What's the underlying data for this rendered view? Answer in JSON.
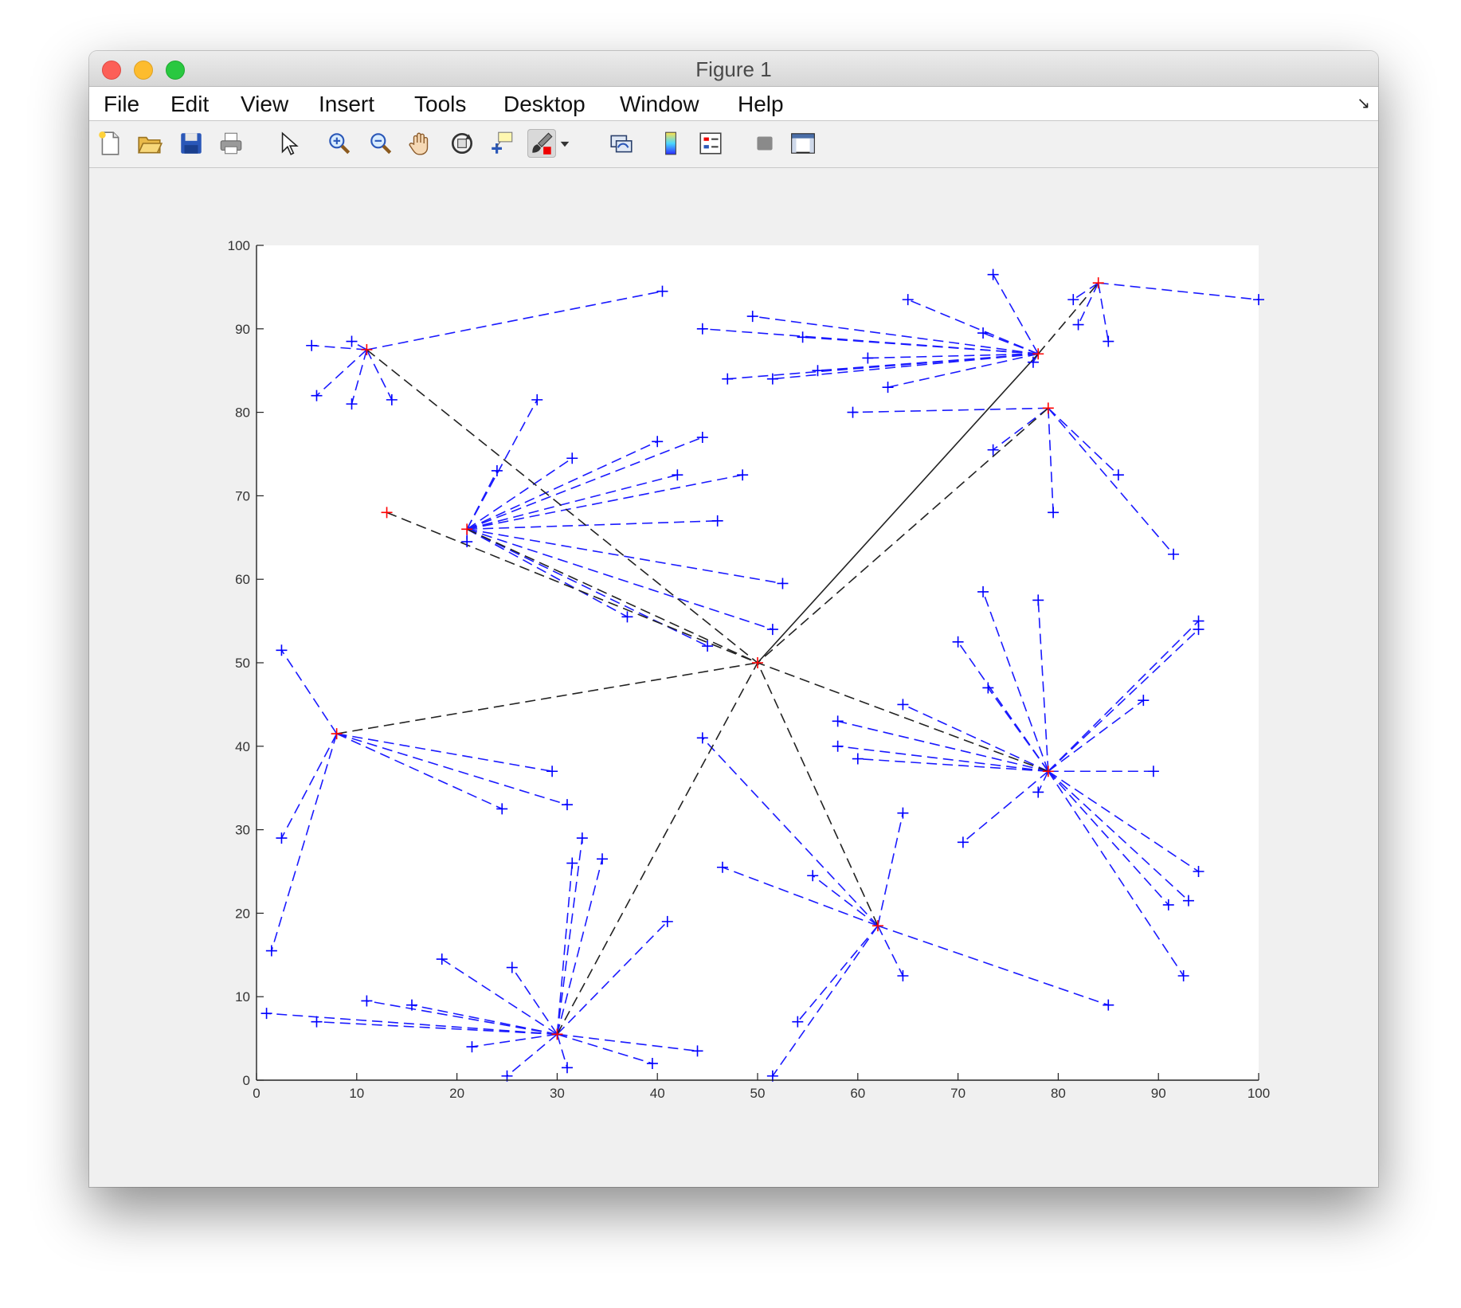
{
  "window": {
    "title": "Figure 1"
  },
  "menu": [
    "File",
    "Edit",
    "View",
    "Insert",
    "Tools",
    "Desktop",
    "Window",
    "Help"
  ],
  "toolbar": {
    "icons": [
      "new-figure-icon",
      "open-file-icon",
      "save-icon",
      "print-icon",
      "select-arrow-icon",
      "zoom-in-icon",
      "zoom-out-icon",
      "pan-hand-icon",
      "rotate-3d-icon",
      "data-cursor-icon",
      "brush-icon",
      "brush-dropdown-icon",
      "link-plot-icon",
      "colorbar-icon",
      "legend-icon",
      "hide-plot-tools-icon",
      "show-plot-tools-icon"
    ]
  },
  "colors": {
    "member_line": "#1a1aff",
    "backbone_line": "#222222",
    "member_marker": "#0000ff",
    "head_marker": "#ff0000"
  },
  "chart_data": {
    "type": "scatter",
    "title": "",
    "xlabel": "",
    "ylabel": "",
    "xlim": [
      0,
      100
    ],
    "ylim": [
      0,
      100
    ],
    "xticks": [
      "0",
      "10",
      "20",
      "30",
      "40",
      "50",
      "60",
      "70",
      "80",
      "90",
      "100"
    ],
    "yticks": [
      "0",
      "10",
      "20",
      "30",
      "40",
      "50",
      "60",
      "70",
      "80",
      "90",
      "100"
    ],
    "grid": false,
    "base_station": [
      50,
      50
    ],
    "clusters": [
      {
        "head": [
          11,
          87.5
        ],
        "members": [
          [
            5.5,
            88
          ],
          [
            9.5,
            88.5
          ],
          [
            6,
            82
          ],
          [
            9.5,
            81
          ],
          [
            13.5,
            81.5
          ],
          [
            40.5,
            94.5
          ]
        ]
      },
      {
        "head": [
          21,
          66
        ],
        "members": [
          [
            28,
            81.5
          ],
          [
            24,
            73
          ],
          [
            31.5,
            74.5
          ],
          [
            40,
            76.5
          ],
          [
            44.5,
            77
          ],
          [
            42,
            72.5
          ],
          [
            48.5,
            72.5
          ],
          [
            46,
            67
          ],
          [
            21,
            64.5
          ],
          [
            52.5,
            59.5
          ],
          [
            51.5,
            54
          ],
          [
            37,
            55.5
          ],
          [
            45,
            52
          ]
        ]
      },
      {
        "head": [
          8,
          41.5
        ],
        "members": [
          [
            2.5,
            51.5
          ],
          [
            2.5,
            29
          ],
          [
            1.5,
            15.5
          ],
          [
            29.5,
            37
          ],
          [
            31,
            33
          ],
          [
            24.5,
            32.5
          ]
        ]
      },
      {
        "head": [
          30,
          5.5
        ],
        "members": [
          [
            1,
            8
          ],
          [
            6,
            7
          ],
          [
            11,
            9.5
          ],
          [
            15.5,
            9
          ],
          [
            18.5,
            14.5
          ],
          [
            25.5,
            13.5
          ],
          [
            21.5,
            4
          ],
          [
            25,
            0.5
          ],
          [
            31.5,
            26
          ],
          [
            32.5,
            29
          ],
          [
            34.5,
            26.5
          ],
          [
            41,
            19
          ],
          [
            39.5,
            2
          ],
          [
            31,
            1.5
          ],
          [
            44,
            3.5
          ]
        ]
      },
      {
        "head": [
          62,
          18.5
        ],
        "members": [
          [
            44.5,
            41
          ],
          [
            46.5,
            25.5
          ],
          [
            55.5,
            24.5
          ],
          [
            64.5,
            32
          ],
          [
            64.5,
            12.5
          ],
          [
            54,
            7
          ],
          [
            51.5,
            0.5
          ],
          [
            85,
            9
          ]
        ]
      },
      {
        "head": [
          79,
          37
        ],
        "members": [
          [
            72.5,
            58.5
          ],
          [
            78,
            57.5
          ],
          [
            70,
            52.5
          ],
          [
            73,
            47
          ],
          [
            64.5,
            45
          ],
          [
            58,
            43
          ],
          [
            58,
            40
          ],
          [
            60,
            38.5
          ],
          [
            78,
            34.5
          ],
          [
            70.5,
            28.5
          ],
          [
            89.5,
            37
          ],
          [
            88.5,
            45.5
          ],
          [
            94,
            55
          ],
          [
            94,
            54
          ],
          [
            94,
            25
          ],
          [
            91,
            21
          ],
          [
            93,
            21.5
          ],
          [
            92.5,
            12.5
          ]
        ]
      },
      {
        "head": [
          78,
          87
        ],
        "members": [
          [
            44.5,
            90
          ],
          [
            49.5,
            91.5
          ],
          [
            54.5,
            89
          ],
          [
            61,
            86.5
          ],
          [
            56,
            85
          ],
          [
            47,
            84
          ],
          [
            51.5,
            84
          ],
          [
            63,
            83
          ],
          [
            65,
            93.5
          ],
          [
            73.5,
            96.5
          ],
          [
            72.5,
            89.5
          ],
          [
            77.5,
            86
          ]
        ]
      },
      {
        "head": [
          84,
          95.5
        ],
        "members": [
          [
            81.5,
            93.5
          ],
          [
            82,
            90.5
          ],
          [
            85,
            88.5
          ],
          [
            100,
            93.5
          ]
        ]
      },
      {
        "head": [
          79,
          80.5
        ],
        "members": [
          [
            59.5,
            80
          ],
          [
            73.5,
            75.5
          ],
          [
            86,
            72.5
          ],
          [
            91.5,
            63
          ],
          [
            79.5,
            68
          ]
        ]
      },
      {
        "head": [
          13,
          68
        ],
        "members": []
      }
    ],
    "backbone_dashed": [
      [
        [
          11,
          87.5
        ],
        [
          50,
          50
        ]
      ],
      [
        [
          13,
          68
        ],
        [
          50,
          50
        ]
      ],
      [
        [
          21,
          66
        ],
        [
          50,
          50
        ]
      ],
      [
        [
          8,
          41.5
        ],
        [
          50,
          50
        ]
      ],
      [
        [
          30,
          5.5
        ],
        [
          50,
          50
        ]
      ],
      [
        [
          62,
          18.5
        ],
        [
          50,
          50
        ]
      ],
      [
        [
          79,
          37
        ],
        [
          50,
          50
        ]
      ],
      [
        [
          79,
          80.5
        ],
        [
          50,
          50
        ]
      ],
      [
        [
          78,
          87
        ],
        [
          84,
          95.5
        ]
      ]
    ],
    "backbone_solid": [
      [
        [
          50,
          50
        ],
        [
          78,
          87
        ]
      ]
    ]
  }
}
